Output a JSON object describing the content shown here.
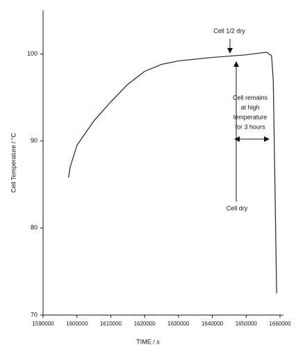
{
  "chart_data": {
    "type": "line",
    "x_label": "TIME / s",
    "y_label": "Cell Temperature / °C",
    "xlim": [
      1590000,
      1660000
    ],
    "ylim": [
      70,
      105
    ],
    "xticks": [
      1590000,
      1600000,
      1610000,
      1620000,
      1630000,
      1640000,
      1650000,
      1660000
    ],
    "yticks": [
      70,
      80,
      90,
      100
    ],
    "series": [
      {
        "color": "#222222",
        "x": [
          1597500,
          1598000,
          1600000,
          1605000,
          1610000,
          1615000,
          1620000,
          1625000,
          1630000,
          1640000,
          1650000,
          1654000,
          1656000,
          1657500,
          1658000,
          1658500,
          1659000
        ],
        "values": [
          85.8,
          87,
          89.5,
          92.3,
          94.5,
          96.5,
          98,
          98.8,
          99.2,
          99.6,
          99.9,
          100.1,
          100.2,
          99.8,
          97,
          85,
          72.5
        ]
      }
    ],
    "annotations": [
      {
        "lines": [
          "Cell 1/2 dry"
        ]
      },
      {
        "lines": [
          "Cell remains",
          "at high",
          "temperature",
          "for 3 hours"
        ]
      },
      {
        "lines": [
          "Cell dry"
        ]
      }
    ]
  }
}
